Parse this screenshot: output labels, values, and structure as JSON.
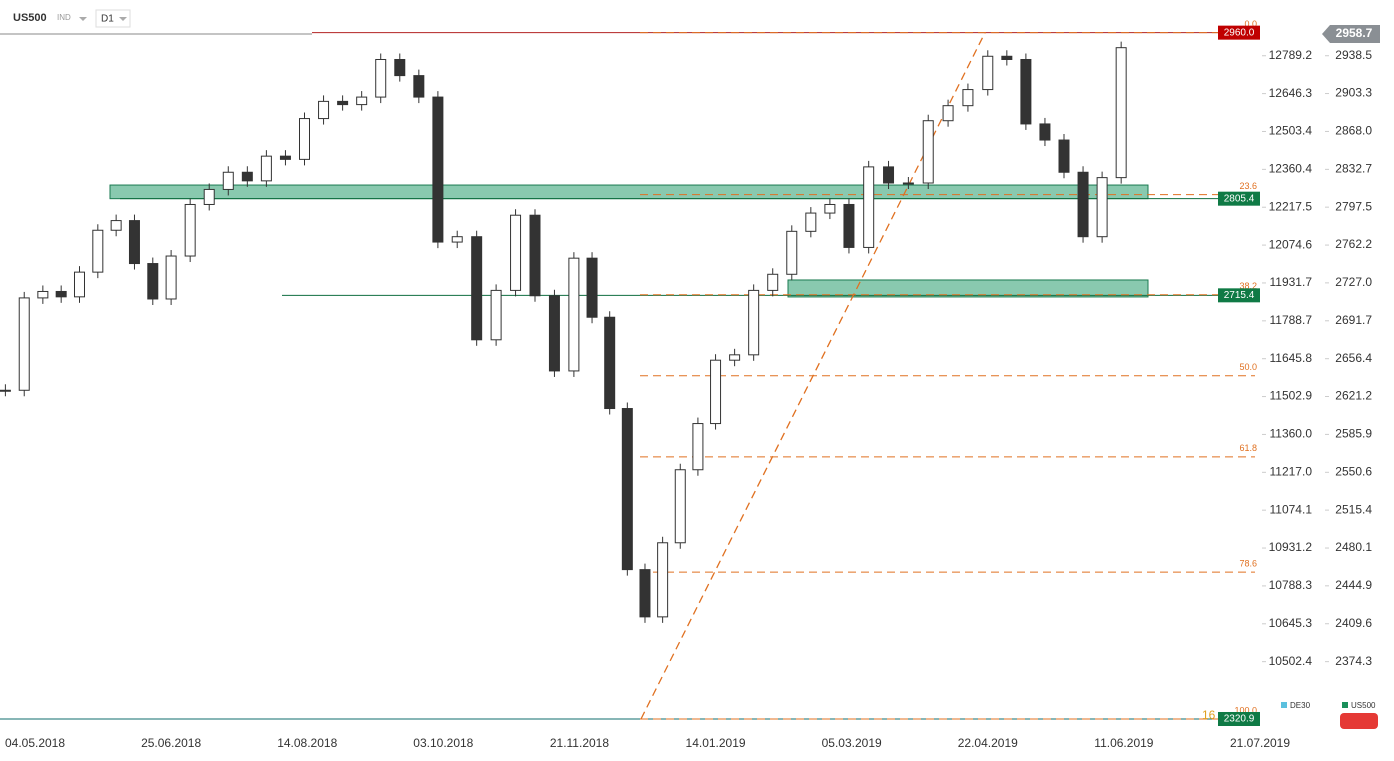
{
  "header": {
    "symbol": "US500",
    "market": "IND",
    "interval": "D1"
  },
  "chart_data": {
    "type": "candlestick",
    "x": [
      "23.04.2018",
      "30.04.2018",
      "07.05.2018",
      "14.05.2018",
      "21.05.2018",
      "28.05.2018",
      "04.06.2018",
      "11.06.2018",
      "18.06.2018",
      "25.06.2018",
      "02.07.2018",
      "09.07.2018",
      "16.07.2018",
      "23.07.2018",
      "30.07.2018",
      "06.08.2018",
      "13.08.2018",
      "20.08.2018",
      "27.08.2018",
      "03.09.2018",
      "10.09.2018",
      "17.09.2018",
      "24.09.2018",
      "01.10.2018",
      "08.10.2018",
      "15.10.2018",
      "22.10.2018",
      "29.10.2018",
      "05.11.2018",
      "12.11.2018",
      "19.11.2018",
      "26.11.2018",
      "03.12.2018",
      "10.12.2018",
      "17.12.2018",
      "24.12.2018",
      "31.12.2018",
      "07.01.2019",
      "14.01.2019",
      "21.01.2019",
      "28.01.2019",
      "04.02.2019",
      "11.02.2019",
      "18.02.2019",
      "25.02.2019",
      "04.03.2019",
      "11.03.2019",
      "18.03.2019",
      "25.03.2019",
      "01.04.2019",
      "08.04.2019",
      "15.04.2019",
      "22.04.2019",
      "29.04.2019",
      "06.05.2019",
      "13.05.2019",
      "20.05.2019",
      "27.05.2019",
      "03.06.2019",
      "10.06.2019"
    ],
    "series": [
      {
        "name": "US500",
        "color": "#1a8f5a",
        "values": [
          2627,
          2713,
          2719,
          2714,
          2737,
          2776,
          2785,
          2745,
          2712,
          2752,
          2800,
          2814,
          2830,
          2822,
          2845,
          2842,
          2880,
          2896,
          2893,
          2900,
          2935,
          2920,
          2900,
          2765,
          2770,
          2674,
          2720,
          2790,
          2715,
          2645,
          2750,
          2695,
          2610,
          2460,
          2416,
          2485,
          2553,
          2596,
          2655,
          2660,
          2720,
          2735,
          2775,
          2792,
          2800,
          2760,
          2835,
          2820,
          2820,
          2878,
          2892,
          2907,
          2938,
          2935,
          2875,
          2860,
          2830,
          2770,
          2825,
          2946
        ]
      },
      {
        "name": "DE30",
        "color": "#5bc0de"
      }
    ],
    "xlim": [
      "21.04.2018",
      "21.07.2019"
    ],
    "xticks": [
      "04.05.2018",
      "25.06.2018",
      "14.08.2018",
      "03.10.2018",
      "21.11.2018",
      "14.01.2019",
      "05.03.2019",
      "22.04.2019",
      "11.06.2019",
      "21.07.2019"
    ],
    "ylim": [
      2306,
      2990.4
    ],
    "yticks": [
      2938.5,
      2903.3,
      {
        "value": 2868,
        "label": "2868.0"
      },
      2832.7,
      2797.5,
      2762.2,
      {
        "value": 2727,
        "label": "2727.0"
      },
      2691.7,
      2656.4,
      2621.2,
      2585.9,
      2550.6,
      2515.4,
      2480.1,
      2444.9,
      2409.6,
      2374.3
    ],
    "y2lim": [
      10225.6,
      12999.6
    ],
    "y2ticks": [
      12789.2,
      12646.3,
      12503.4,
      12360.4,
      12217.5,
      12074.6,
      11931.7,
      11788.7,
      11645.8,
      11502.9,
      {
        "value": 11360,
        "label": "11360.0"
      },
      {
        "value": 11217,
        "label": "11217.0"
      },
      11074.1,
      10931.2,
      10788.3,
      10645.3,
      10502.4
    ],
    "last_price": 2958.7,
    "price_tags": [
      {
        "value": 2960,
        "label": "2960.0",
        "color": "#c00000"
      },
      {
        "value": 2805.4,
        "label": "2805.4",
        "color": "#0f7a45"
      },
      {
        "value": 2715.4,
        "label": "2715.4",
        "color": "#0f7a45"
      },
      {
        "value": 2320.9,
        "label": "2320.9",
        "color": "#0f7a45"
      }
    ],
    "zones": [
      {
        "low": 2805.4,
        "high": 2818.1
      },
      {
        "low": 2713.9,
        "high": 2729.7
      }
    ],
    "fib_levels": [
      "0.0",
      "23.6",
      "38.2",
      "50.0",
      "61.8",
      "78.6",
      "100.0"
    ],
    "fib_prices": [
      2960,
      2809.2,
      2715.9,
      2640.5,
      2565,
      2457.7,
      2320.9
    ],
    "annotation": "16"
  }
}
